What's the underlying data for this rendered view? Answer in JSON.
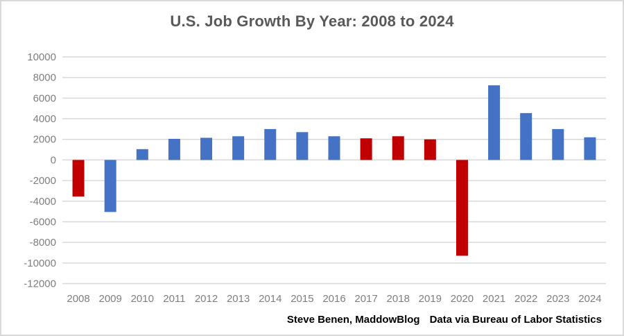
{
  "title": "U.S. Job Growth By Year: 2008 to 2024",
  "credit": {
    "left": "Steve Benen, MaddowBlog",
    "right": "Data via Bureau of Labor Statistics"
  },
  "colors": {
    "bar_blue": "#4472C4",
    "bar_red": "#C00000",
    "gridline": "#D9D9D9",
    "title_text": "#595959",
    "axis_text": "#7F7F7F",
    "credit_text": "#000000",
    "frame_border": "#D9D9D9"
  },
  "chart_data": {
    "type": "bar",
    "title": "U.S. Job Growth By Year: 2008 to 2024",
    "categories": [
      "2008",
      "2009",
      "2010",
      "2011",
      "2012",
      "2013",
      "2014",
      "2015",
      "2016",
      "2017",
      "2018",
      "2019",
      "2020",
      "2021",
      "2022",
      "2023",
      "2024"
    ],
    "values": [
      -3550,
      -5050,
      1050,
      2050,
      2150,
      2300,
      3000,
      2700,
      2300,
      2100,
      2300,
      2000,
      -9300,
      7250,
      4550,
      3000,
      2200
    ],
    "bar_colors": [
      "#C00000",
      "#4472C4",
      "#4472C4",
      "#4472C4",
      "#4472C4",
      "#4472C4",
      "#4472C4",
      "#4472C4",
      "#4472C4",
      "#C00000",
      "#C00000",
      "#C00000",
      "#C00000",
      "#4472C4",
      "#4472C4",
      "#4472C4",
      "#4472C4"
    ],
    "xlabel": "",
    "ylabel": "",
    "ylim": [
      -12000,
      10000
    ],
    "ytick_step": 2000,
    "ytick_labels": [
      "10000",
      "8000",
      "6000",
      "4000",
      "2000",
      "0",
      "-2000",
      "-4000",
      "-6000",
      "-8000",
      "-10000",
      "-12000"
    ],
    "grid": true,
    "legend": "none",
    "annotations": [
      "Steve Benen, MaddowBlog",
      "Data via Bureau of Labor Statistics"
    ]
  }
}
